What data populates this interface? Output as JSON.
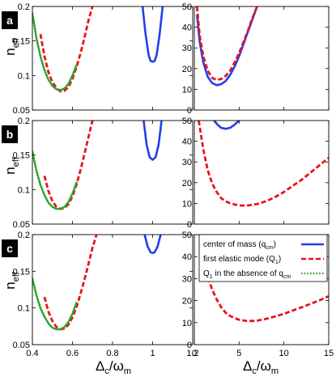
{
  "colors": {
    "center_of_mass": "#2040e8",
    "first_elastic_mode": "#e8141a",
    "q1_absent_qcm": "#2aa52a",
    "badge_bg": "#000000"
  },
  "axis_text": {
    "y_main": "n",
    "y_sub": "eff",
    "x_left_main": "Δ",
    "x_left_sub": "c",
    "x_left_slash": "/ω",
    "x_left_sub2": "m",
    "x_right_main": "Δ",
    "x_right_sub": "c",
    "x_right_slash": "/ω",
    "x_right_sub2": "m"
  },
  "legend": {
    "placement": "top-right of panel c (right)",
    "entries": [
      {
        "id": "cm",
        "main": "center of mass (q",
        "sub": "cm",
        "tail": ")"
      },
      {
        "id": "q1",
        "main": "first elastic mode (Q",
        "sub": "1",
        "tail": ")"
      },
      {
        "id": "q1na",
        "main": "Q",
        "sub": "1",
        "tail": " in the absence of q",
        "sub2": "cm"
      }
    ]
  },
  "chart_data": [
    {
      "id": "a-left",
      "panel_label": "a",
      "type": "line",
      "xlim": [
        0.4,
        1.2
      ],
      "ylim": [
        0.05,
        0.2
      ],
      "xticks": [],
      "yticks": [
        "0.05",
        "0.1",
        "0.15",
        "0.2"
      ],
      "series": [
        {
          "key": "cm",
          "style": "solid",
          "x": [
            0.95,
            0.965,
            0.98,
            0.99,
            1.0,
            1.01,
            1.02,
            1.035,
            1.05
          ],
          "y": [
            0.2,
            0.16,
            0.13,
            0.121,
            0.12,
            0.121,
            0.13,
            0.16,
            0.2
          ]
        },
        {
          "key": "q1",
          "style": "dashed",
          "x": [
            0.44,
            0.46,
            0.48,
            0.5,
            0.52,
            0.54,
            0.56,
            0.58,
            0.6,
            0.62,
            0.64,
            0.66,
            0.68,
            0.7
          ],
          "y": [
            0.16,
            0.128,
            0.105,
            0.09,
            0.082,
            0.077,
            0.078,
            0.083,
            0.095,
            0.112,
            0.132,
            0.155,
            0.18,
            0.2
          ]
        },
        {
          "key": "q1na",
          "style": "dotted",
          "x": [
            0.4,
            0.42,
            0.44,
            0.46,
            0.48,
            0.5,
            0.52,
            0.54,
            0.56,
            0.58,
            0.6,
            0.62
          ],
          "y": [
            0.19,
            0.155,
            0.128,
            0.108,
            0.094,
            0.085,
            0.08,
            0.079,
            0.081,
            0.088,
            0.1,
            0.115
          ]
        }
      ]
    },
    {
      "id": "a-right",
      "panel_label": "",
      "type": "line",
      "xlim": [
        0,
        15
      ],
      "ylim": [
        0,
        50
      ],
      "xticks": [],
      "yticks": [
        "0",
        "10",
        "20",
        "30",
        "40",
        "50"
      ],
      "series": [
        {
          "key": "cm",
          "style": "solid",
          "x": [
            0.3,
            0.6,
            1.0,
            1.5,
            2.0,
            2.5,
            3.0,
            3.5,
            4.0,
            4.5,
            5.0,
            5.5,
            6.0,
            6.5,
            7.0
          ],
          "y": [
            46,
            33,
            23,
            16,
            13,
            12,
            12.5,
            14,
            17,
            21,
            26,
            32,
            38,
            44,
            50
          ]
        },
        {
          "key": "q1",
          "style": "dashed",
          "x": [
            0.3,
            0.6,
            1.0,
            1.5,
            2.0,
            2.5,
            3.0,
            3.5,
            4.0,
            4.5,
            5.0,
            5.5,
            6.0,
            6.5,
            7.0
          ],
          "y": [
            50,
            36,
            26,
            19,
            15.5,
            14.5,
            15,
            16.5,
            19,
            23,
            27.5,
            33,
            38.5,
            44.5,
            50
          ]
        }
      ]
    },
    {
      "id": "b-left",
      "panel_label": "b",
      "type": "line",
      "xlim": [
        0.4,
        1.2
      ],
      "ylim": [
        0.05,
        0.2
      ],
      "xticks": [],
      "yticks": [
        "0.05",
        "0.1",
        "0.15",
        "0.2"
      ],
      "series": [
        {
          "key": "cm",
          "style": "solid",
          "x": [
            0.955,
            0.97,
            0.985,
            1.0,
            1.015,
            1.03,
            1.045
          ],
          "y": [
            0.2,
            0.165,
            0.147,
            0.143,
            0.147,
            0.165,
            0.2
          ]
        },
        {
          "key": "q1",
          "style": "dashed",
          "x": [
            0.46,
            0.48,
            0.5,
            0.52,
            0.54,
            0.56,
            0.58,
            0.6,
            0.62,
            0.64,
            0.66,
            0.68,
            0.7
          ],
          "y": [
            0.12,
            0.098,
            0.083,
            0.075,
            0.072,
            0.073,
            0.079,
            0.09,
            0.107,
            0.128,
            0.152,
            0.176,
            0.2
          ]
        },
        {
          "key": "q1na",
          "style": "dotted",
          "x": [
            0.4,
            0.42,
            0.44,
            0.46,
            0.48,
            0.5,
            0.52,
            0.54,
            0.56,
            0.58,
            0.6,
            0.62
          ],
          "y": [
            0.155,
            0.128,
            0.107,
            0.092,
            0.081,
            0.075,
            0.072,
            0.072,
            0.075,
            0.082,
            0.094,
            0.11
          ]
        }
      ]
    },
    {
      "id": "b-right",
      "panel_label": "",
      "type": "line",
      "xlim": [
        0,
        15
      ],
      "ylim": [
        0,
        50
      ],
      "xticks": [],
      "yticks": [
        "0",
        "10",
        "20",
        "30",
        "40",
        "50"
      ],
      "series": [
        {
          "key": "cm",
          "style": "solid",
          "x": [
            2.2,
            2.6,
            3.0,
            3.5,
            4.0,
            4.5,
            5.0
          ],
          "y": [
            50,
            48,
            46.5,
            46,
            46.5,
            48,
            50
          ]
        },
        {
          "key": "q1",
          "style": "dashed",
          "x": [
            0.5,
            1.0,
            1.5,
            2.0,
            2.5,
            3.0,
            3.5,
            4.0,
            5.0,
            6.0,
            7.0,
            8.0,
            9.0,
            10.0,
            11.0,
            12.0,
            13.0,
            14.0,
            15.0
          ],
          "y": [
            50,
            36,
            26,
            19.5,
            15.5,
            12.5,
            11,
            10,
            9,
            9,
            9.7,
            11,
            13,
            15.5,
            18.5,
            21.5,
            25,
            28.5,
            32
          ]
        }
      ]
    },
    {
      "id": "c-left",
      "panel_label": "c",
      "type": "line",
      "xlim": [
        0.4,
        1.2
      ],
      "ylim": [
        0.05,
        0.2
      ],
      "xticks": [
        "0.4",
        "0.6",
        "0.8",
        "1",
        "1.2"
      ],
      "yticks": [
        "0.05",
        "0.1",
        "0.15",
        "0.2"
      ],
      "series": [
        {
          "key": "cm",
          "style": "solid",
          "x": [
            0.96,
            0.975,
            0.99,
            1.0,
            1.01,
            1.025,
            1.04
          ],
          "y": [
            0.2,
            0.184,
            0.176,
            0.175,
            0.176,
            0.184,
            0.2
          ]
        },
        {
          "key": "q1",
          "style": "dashed",
          "x": [
            0.46,
            0.48,
            0.5,
            0.52,
            0.54,
            0.56,
            0.58,
            0.6,
            0.62,
            0.64,
            0.66,
            0.68,
            0.7,
            0.72
          ],
          "y": [
            0.115,
            0.095,
            0.082,
            0.074,
            0.071,
            0.072,
            0.077,
            0.087,
            0.101,
            0.119,
            0.139,
            0.16,
            0.182,
            0.2
          ]
        },
        {
          "key": "q1na",
          "style": "dotted",
          "x": [
            0.4,
            0.42,
            0.44,
            0.46,
            0.48,
            0.5,
            0.52,
            0.54,
            0.56,
            0.58,
            0.6,
            0.62
          ],
          "y": [
            0.14,
            0.118,
            0.1,
            0.088,
            0.079,
            0.073,
            0.071,
            0.071,
            0.074,
            0.081,
            0.092,
            0.107
          ]
        }
      ]
    },
    {
      "id": "c-right",
      "panel_label": "",
      "type": "line",
      "xlim": [
        0,
        15
      ],
      "ylim": [
        0,
        50
      ],
      "xticks": [
        "0",
        "5",
        "10",
        "15"
      ],
      "yticks": [
        "0",
        "10",
        "20",
        "30",
        "40",
        "50"
      ],
      "series": [
        {
          "key": "q1",
          "style": "dashed",
          "x": [
            0.6,
            1.0,
            1.5,
            2.0,
            2.5,
            3.0,
            3.5,
            4.0,
            5.0,
            6.0,
            7.0,
            8.0,
            9.0,
            10.0,
            11.0,
            12.0,
            13.0,
            14.0,
            15.0
          ],
          "y": [
            50,
            40,
            31,
            25,
            20.5,
            17,
            14.5,
            13,
            11.3,
            10.7,
            10.9,
            11.7,
            12.8,
            14,
            15.5,
            17,
            18.6,
            20.2,
            22
          ]
        }
      ]
    }
  ]
}
